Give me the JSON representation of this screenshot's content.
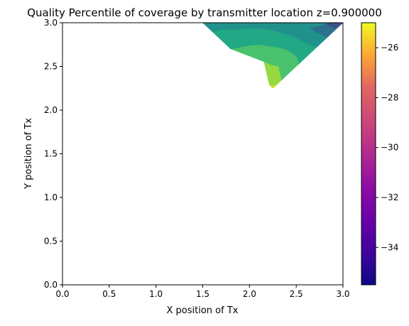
{
  "chart_data": {
    "type": "contour",
    "title": "Quality Percentile of coverage by transmitter location z=0.900000",
    "xlabel": "X position of Tx",
    "ylabel": "Y position of Tx",
    "xlim": [
      0.0,
      3.0
    ],
    "ylim": [
      0.0,
      3.0
    ],
    "xticks": [
      "0.0",
      "0.5",
      "1.0",
      "1.5",
      "2.0",
      "2.5",
      "3.0"
    ],
    "yticks": [
      "0.0",
      "0.5",
      "1.0",
      "1.5",
      "2.0",
      "2.5",
      "3.0"
    ],
    "grid": false,
    "colormap": "plasma",
    "colorbar": {
      "range": [
        -35.5,
        -25
      ],
      "ticks": [
        "-34",
        "-32",
        "-30",
        "-28",
        "-26"
      ]
    },
    "region_vertices": [
      [
        1.5,
        3.0
      ],
      [
        3.0,
        3.0
      ],
      [
        2.25,
        2.25
      ]
    ],
    "bands": [
      {
        "color": "#d0e11c",
        "polygon": [
          [
            2.285,
            2.285
          ],
          [
            2.215,
            2.285
          ],
          [
            2.25,
            2.25
          ]
        ]
      },
      {
        "color": "#95d840",
        "polygon": [
          [
            2.345,
            2.345
          ],
          [
            2.31,
            2.5
          ],
          [
            2.23,
            2.52
          ],
          [
            2.155,
            2.555
          ],
          [
            2.215,
            2.285
          ],
          [
            2.285,
            2.285
          ]
        ]
      },
      {
        "color": "#4ac16d",
        "polygon": [
          [
            2.52,
            2.52
          ],
          [
            2.53,
            2.55
          ],
          [
            2.5,
            2.62
          ],
          [
            2.4,
            2.69
          ],
          [
            2.3,
            2.72
          ],
          [
            2.1,
            2.75
          ],
          [
            2.0,
            2.74
          ],
          [
            1.8,
            2.7
          ],
          [
            2.155,
            2.555
          ],
          [
            2.23,
            2.52
          ],
          [
            2.31,
            2.5
          ],
          [
            2.345,
            2.345
          ]
        ]
      },
      {
        "color": "#22a884",
        "polygon": [
          [
            2.72,
            2.72
          ],
          [
            2.65,
            2.75
          ],
          [
            2.55,
            2.8
          ],
          [
            2.45,
            2.85
          ],
          [
            2.3,
            2.9
          ],
          [
            2.15,
            2.93
          ],
          [
            2.0,
            2.94
          ],
          [
            1.88,
            2.92
          ],
          [
            1.75,
            2.93
          ],
          [
            1.6,
            2.9
          ],
          [
            1.8,
            2.7
          ],
          [
            2.0,
            2.74
          ],
          [
            2.1,
            2.75
          ],
          [
            2.3,
            2.72
          ],
          [
            2.4,
            2.69
          ],
          [
            2.5,
            2.62
          ],
          [
            2.53,
            2.55
          ],
          [
            2.52,
            2.52
          ]
        ]
      },
      {
        "color": "#21918c",
        "polygon": [
          [
            2.86,
            3.0
          ],
          [
            2.6,
            3.0
          ],
          [
            2.55,
            2.97
          ],
          [
            2.4,
            2.94
          ],
          [
            2.3,
            2.95
          ],
          [
            2.2,
            3.0
          ],
          [
            1.5,
            3.0
          ],
          [
            1.6,
            2.9
          ],
          [
            1.75,
            2.93
          ],
          [
            1.88,
            2.92
          ],
          [
            2.0,
            2.94
          ],
          [
            2.15,
            2.93
          ],
          [
            2.3,
            2.9
          ],
          [
            2.45,
            2.85
          ],
          [
            2.55,
            2.8
          ],
          [
            2.65,
            2.75
          ],
          [
            2.72,
            2.72
          ],
          [
            2.83,
            2.83
          ],
          [
            2.78,
            2.86
          ],
          [
            2.7,
            2.9
          ],
          [
            2.65,
            2.94
          ],
          [
            2.75,
            2.96
          ]
        ]
      },
      {
        "color": "#2c728e",
        "polygon": [
          [
            2.95,
            2.95
          ],
          [
            2.9,
            2.94
          ],
          [
            2.82,
            2.98
          ],
          [
            2.86,
            3.0
          ],
          [
            2.75,
            2.96
          ],
          [
            2.65,
            2.94
          ],
          [
            2.7,
            2.9
          ],
          [
            2.78,
            2.86
          ],
          [
            2.83,
            2.83
          ]
        ]
      },
      {
        "color": "#3b528b",
        "polygon": [
          [
            3.0,
            3.0
          ],
          [
            2.86,
            3.0
          ],
          [
            2.82,
            2.98
          ],
          [
            2.9,
            2.94
          ],
          [
            2.95,
            2.95
          ]
        ]
      },
      {
        "color": "#21918c",
        "polygon": [
          [
            2.6,
            3.0
          ],
          [
            2.2,
            3.0
          ],
          [
            2.3,
            2.95
          ],
          [
            2.4,
            2.94
          ],
          [
            2.55,
            2.97
          ]
        ]
      }
    ]
  }
}
